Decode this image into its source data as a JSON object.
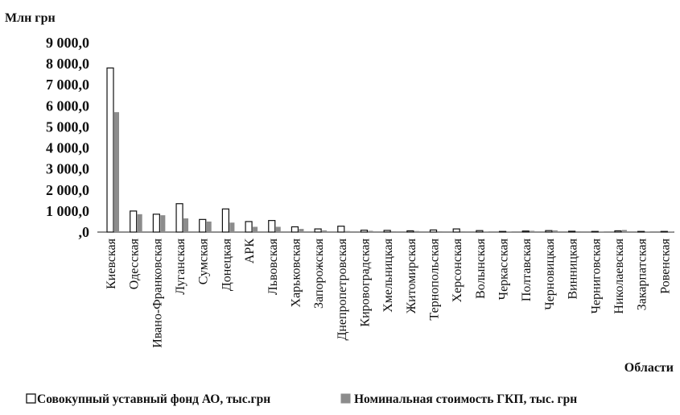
{
  "chart_data": {
    "type": "bar",
    "ylabel": "Млн  грн",
    "xlabel": "Области",
    "ylim": [
      0,
      9000
    ],
    "yticks": [
      0,
      1000,
      2000,
      3000,
      4000,
      5000,
      6000,
      7000,
      8000,
      9000
    ],
    "ytick_labels": [
      ",0",
      "1 000,0",
      "2 000,0",
      "3 000,0",
      "4 000,0",
      "5 000,0",
      "6 000,0",
      "7 000,0",
      "8 000,0",
      "9 000,0"
    ],
    "grid": false,
    "legend_position": "bottom",
    "categories": [
      "Киевская",
      "Одесская",
      "Ивано-Франковская",
      "Луганская",
      "Сумская",
      "Донецкая",
      "АРК",
      "Львовская",
      "Харьковская",
      "Запорожская",
      "Днепропетровская",
      "Кировоградская",
      "Хмельницкая",
      "Житомирская",
      "Тернопольская",
      "Херсонская",
      "Волынская",
      "Черкасская",
      "Полтавская",
      "Черновицкая",
      "Винницкая",
      "Черниговская",
      "Николаевская",
      "Закарпатская",
      "Ровенская"
    ],
    "series": [
      {
        "name": "Совокупный уставный фонд АО, тыс.грн",
        "color": "#ffffff",
        "stroke": "#111111",
        "values": [
          7800,
          1000,
          850,
          1350,
          600,
          1100,
          500,
          550,
          250,
          150,
          280,
          90,
          80,
          60,
          100,
          150,
          70,
          30,
          50,
          70,
          40,
          15,
          60,
          10,
          10
        ]
      },
      {
        "name": "Номинальная стоимость ГКП, тыс. грн",
        "color": "#8c8c8c",
        "values": [
          5700,
          850,
          800,
          650,
          500,
          450,
          250,
          250,
          150,
          80,
          50,
          60,
          40,
          50,
          40,
          40,
          30,
          20,
          60,
          80,
          40,
          20,
          100,
          15,
          15
        ]
      }
    ]
  }
}
